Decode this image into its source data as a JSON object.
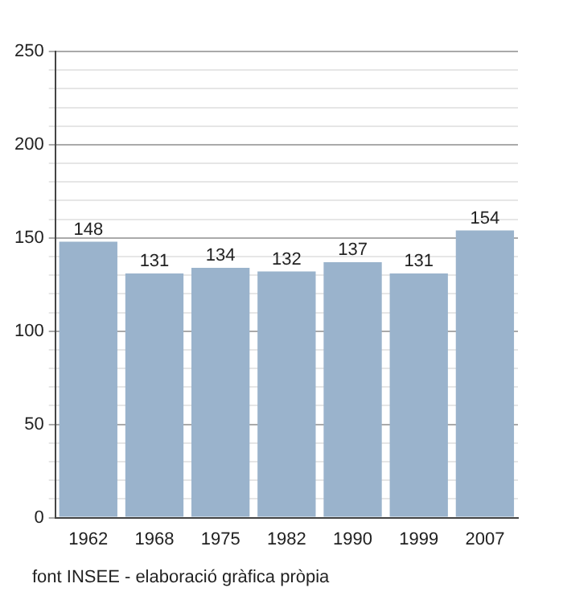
{
  "chart_data": {
    "type": "bar",
    "categories": [
      "1962",
      "1968",
      "1975",
      "1982",
      "1990",
      "1999",
      "2007"
    ],
    "values": [
      148,
      131,
      134,
      132,
      137,
      131,
      154
    ],
    "color": "#9ab3cc",
    "data_labels": true,
    "grid": "y",
    "legend": false,
    "ylim": [
      0,
      250
    ],
    "yticks": [
      0,
      {
        "value": 10,
        "label": null
      },
      {
        "value": 20,
        "label": null
      },
      {
        "value": 30,
        "label": null
      },
      {
        "value": 40,
        "label": null
      },
      50,
      {
        "value": 60,
        "label": null
      },
      {
        "value": 70,
        "label": null
      },
      {
        "value": 80,
        "label": null
      },
      {
        "value": 90,
        "label": null
      },
      100,
      {
        "value": 110,
        "label": null
      },
      {
        "value": 120,
        "label": null
      },
      {
        "value": 130,
        "label": null
      },
      {
        "value": 140,
        "label": null
      },
      150,
      {
        "value": 160,
        "label": null
      },
      {
        "value": 170,
        "label": null
      },
      {
        "value": 180,
        "label": null
      },
      {
        "value": 190,
        "label": null
      },
      200,
      {
        "value": 210,
        "label": null
      },
      {
        "value": 220,
        "label": null
      },
      {
        "value": 230,
        "label": null
      },
      {
        "value": 240,
        "label": null
      },
      250
    ],
    "annotations": [
      "font INSEE - elaboració gràfica pròpia"
    ]
  }
}
